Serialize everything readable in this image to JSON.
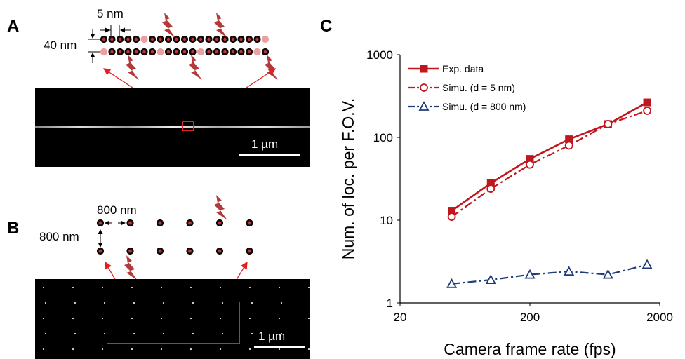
{
  "panels": {
    "a": {
      "letter": "A",
      "spacing_label": "5 nm",
      "row_gap_label": "40 nm",
      "scale_label": "1 µm"
    },
    "b": {
      "letter": "B",
      "spacing_label": "800 nm",
      "row_gap_label": "800 nm",
      "scale_label": "1 µm"
    },
    "c": {
      "letter": "C"
    }
  },
  "colors": {
    "exp": "#c0161d",
    "simu5": "#c0161d",
    "simu800": "#1f3b78",
    "emitter_on": "#b33a3a",
    "emitter_off": "#e8a0a0",
    "roi": "#e32020"
  },
  "chart_data": {
    "type": "line",
    "title": "",
    "xlabel": "Camera frame rate (fps)",
    "ylabel": "Num. of loc. per F.O.V.",
    "x_scale": "log",
    "y_scale": "log",
    "xlim": [
      20,
      2000
    ],
    "ylim": [
      1,
      1000
    ],
    "x_ticks": [
      20,
      200,
      2000
    ],
    "y_ticks": [
      1,
      10,
      100,
      1000
    ],
    "legend_position": "top-left",
    "series": [
      {
        "name": "Exp. data",
        "style": "solid-square",
        "x": [
          50,
          100,
          200,
          400,
          800,
          1600
        ],
        "y": [
          13,
          28,
          55,
          95,
          145,
          265
        ]
      },
      {
        "name": "Simu. (d = 5 nm)",
        "style": "dashdot-circle",
        "x": [
          50,
          100,
          200,
          400,
          800,
          1600
        ],
        "y": [
          11,
          24,
          47,
          80,
          145,
          210
        ]
      },
      {
        "name": "Simu. (d = 800 nm)",
        "style": "dashdot-triangle",
        "x": [
          50,
          100,
          200,
          400,
          800,
          1600
        ],
        "y": [
          1.7,
          1.9,
          2.2,
          2.4,
          2.2,
          2.9
        ]
      }
    ]
  }
}
